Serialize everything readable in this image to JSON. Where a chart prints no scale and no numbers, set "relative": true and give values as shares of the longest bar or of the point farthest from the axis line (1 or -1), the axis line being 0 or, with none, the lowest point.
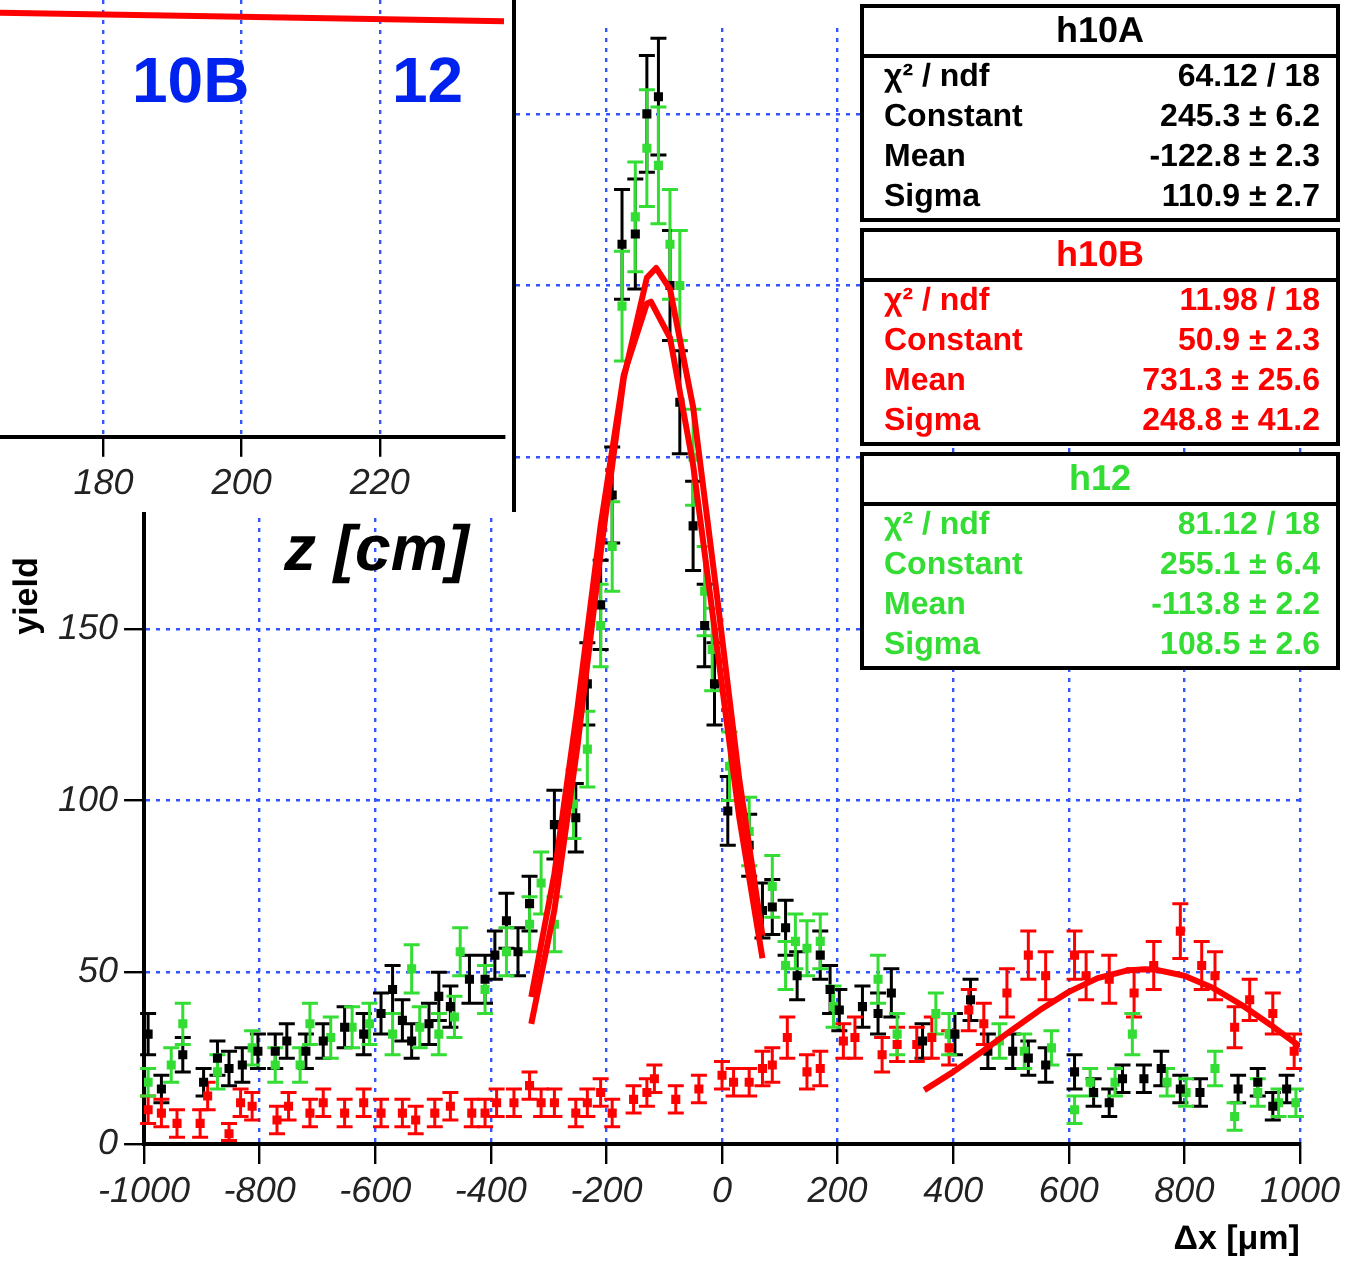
{
  "chart_data": [
    {
      "type": "scatter",
      "xlabel": "Δx [μm]",
      "ylabel": "yield",
      "xlim": [
        -1000,
        1000
      ],
      "xticks": [
        -1000,
        -800,
        -600,
        -400,
        -200,
        0,
        200,
        400,
        600,
        800,
        1000
      ],
      "ylim": [
        0,
        325
      ],
      "yticks": [
        0,
        50,
        100,
        150,
        {
          "value": 200,
          "label": null
        },
        {
          "value": 250,
          "label": null
        },
        {
          "value": 300,
          "label": null
        }
      ],
      "grid": true,
      "legend": false,
      "marker": "square",
      "annotations": [
        "χ² / ndf",
        "64.12 / 18",
        "Constant",
        "245.3 ± 6.2",
        "Mean",
        "-122.8 ± 2.3",
        "Sigma",
        "110.9 ± 2.7",
        "χ² / ndf",
        "11.98 / 18",
        "Constant",
        "50.9 ± 2.3",
        "Mean",
        "731.3 ± 25.6",
        "Sigma",
        "248.8 ± 41.2",
        "χ² / ndf",
        "81.12 / 18",
        "Constant",
        "255.1 ± 6.4",
        "Mean",
        "-113.8 ± 2.2",
        "Sigma",
        "108.5 ± 2.6"
      ],
      "series": [
        {
          "name": "h10A",
          "color": "#000000",
          "x": [
            -993,
            -970,
            -933,
            -897,
            -873,
            -853,
            -830,
            -803,
            -773,
            -753,
            -720,
            -690,
            -653,
            -620,
            -590,
            -570,
            -553,
            -537,
            -507,
            -490,
            -470,
            -437,
            -410,
            -393,
            -373,
            -353,
            -333,
            -290,
            -253,
            -233,
            -210,
            -190,
            -173,
            -150,
            -130,
            -110,
            -90,
            -73,
            -50,
            -30,
            -13,
            10,
            47,
            70,
            87,
            110,
            130,
            170,
            187,
            203,
            243,
            270,
            293,
            347,
            403,
            430,
            460,
            503,
            530,
            560,
            610,
            643,
            670,
            693,
            730,
            760,
            793,
            827,
            893,
            927,
            953,
            977
          ],
          "values": [
            32,
            16,
            26,
            18,
            25,
            22,
            23,
            27,
            27,
            30,
            27,
            30,
            34,
            32,
            38,
            45,
            36,
            30,
            35,
            43,
            40,
            48,
            48,
            55,
            65,
            56,
            70,
            93,
            95,
            134,
            157,
            189,
            262,
            265,
            300,
            305,
            250,
            216,
            180,
            151,
            134,
            97,
            87,
            68,
            69,
            63,
            49,
            55,
            45,
            39,
            40,
            38,
            44,
            30,
            32,
            42,
            27,
            27,
            25,
            23,
            21,
            15,
            12,
            19,
            19,
            22,
            16,
            15,
            16,
            18,
            11,
            16
          ],
          "errors": [
            6,
            4,
            5,
            4,
            5,
            5,
            5,
            5,
            5,
            5,
            5,
            5,
            6,
            6,
            6,
            7,
            6,
            5,
            6,
            7,
            6,
            7,
            7,
            7,
            8,
            7,
            8,
            10,
            10,
            12,
            13,
            14,
            16,
            16,
            17,
            17,
            16,
            15,
            13,
            12,
            12,
            10,
            9,
            8,
            8,
            8,
            7,
            7,
            7,
            6,
            6,
            6,
            7,
            5,
            6,
            6,
            5,
            5,
            5,
            5,
            5,
            4,
            4,
            4,
            4,
            5,
            4,
            4,
            4,
            4,
            4,
            4
          ]
        },
        {
          "name": "h10B",
          "color": "#ff0000",
          "x": [
            -993,
            -970,
            -943,
            -903,
            -890,
            -853,
            -833,
            -813,
            -770,
            -750,
            -713,
            -690,
            -653,
            -620,
            -590,
            -553,
            -530,
            -497,
            -470,
            -433,
            -410,
            -390,
            -360,
            -333,
            -313,
            -290,
            -253,
            -233,
            -210,
            -190,
            -153,
            -130,
            -117,
            -80,
            -40,
            0,
            20,
            47,
            70,
            87,
            113,
            147,
            170,
            210,
            230,
            277,
            303,
            337,
            363,
            393,
            427,
            453,
            493,
            530,
            560,
            610,
            630,
            670,
            713,
            747,
            793,
            830,
            853,
            887,
            913,
            953,
            990
          ],
          "values": [
            10,
            9,
            6,
            6,
            14,
            3,
            12,
            11,
            7,
            11,
            9,
            12,
            9,
            12,
            9,
            9,
            7,
            9,
            11,
            9,
            9,
            12,
            12,
            17,
            12,
            12,
            9,
            12,
            15,
            9,
            13,
            15,
            19,
            13,
            16,
            20,
            18,
            18,
            22,
            23,
            31,
            21,
            22,
            30,
            31,
            26,
            29,
            29,
            31,
            28,
            39,
            35,
            44,
            55,
            49,
            55,
            49,
            48,
            44,
            52,
            62,
            52,
            49,
            34,
            42,
            38,
            27
          ],
          "errors": [
            4,
            4,
            4,
            4,
            4,
            [
              2,
              3
            ],
            4,
            4,
            4,
            4,
            4,
            4,
            4,
            4,
            4,
            4,
            4,
            4,
            4,
            4,
            4,
            4,
            4,
            4,
            4,
            4,
            4,
            4,
            4,
            4,
            4,
            4,
            4,
            4,
            4,
            4,
            4,
            4,
            5,
            5,
            6,
            5,
            5,
            5,
            6,
            5,
            5,
            5,
            6,
            5,
            6,
            6,
            7,
            7,
            7,
            7,
            7,
            7,
            7,
            7,
            8,
            7,
            7,
            6,
            6,
            6,
            5
          ]
        },
        {
          "name": "h12",
          "color": "#33dd33",
          "x": [
            -993,
            -953,
            -933,
            -873,
            -813,
            -773,
            -730,
            -713,
            -677,
            -640,
            -610,
            -570,
            -537,
            -523,
            -490,
            -463,
            -453,
            -410,
            -373,
            -333,
            -313,
            -290,
            -257,
            -233,
            -210,
            -190,
            -173,
            -150,
            -130,
            -110,
            -90,
            -73,
            -50,
            -30,
            -17,
            13,
            47,
            87,
            110,
            127,
            147,
            170,
            193,
            270,
            303,
            370,
            393,
            480,
            523,
            570,
            610,
            637,
            680,
            710,
            770,
            803,
            853,
            887,
            927,
            963,
            993
          ],
          "values": [
            18,
            23,
            35,
            21,
            28,
            23,
            23,
            35,
            31,
            34,
            35,
            32,
            51,
            34,
            32,
            37,
            56,
            45,
            56,
            64,
            76,
            64,
            99,
            115,
            151,
            174,
            244,
            270,
            290,
            285,
            262,
            250,
            200,
            161,
            144,
            110,
            91,
            75,
            52,
            59,
            57,
            59,
            40,
            48,
            32,
            38,
            32,
            30,
            27,
            28,
            10,
            18,
            18,
            32,
            18,
            15,
            22,
            8,
            15,
            12,
            12
          ],
          "errors": [
            4,
            5,
            6,
            5,
            5,
            5,
            5,
            6,
            6,
            6,
            6,
            6,
            7,
            6,
            6,
            6,
            7,
            7,
            7,
            8,
            9,
            8,
            10,
            11,
            12,
            13,
            16,
            16,
            17,
            17,
            16,
            16,
            14,
            13,
            12,
            10,
            10,
            9,
            7,
            8,
            8,
            8,
            6,
            7,
            6,
            6,
            6,
            5,
            5,
            5,
            4,
            4,
            4,
            6,
            4,
            4,
            5,
            4,
            4,
            4,
            4
          ]
        },
        {
          "type": "line",
          "color": "#ff0000",
          "marker": "none",
          "x": [
            -330,
            -290,
            -250,
            -210,
            -170,
            -130,
            -123,
            -90,
            -50,
            -10,
            30,
            70
          ],
          "values": [
            42.8,
            78.7,
            127.1,
            180.1,
            224.0,
            244.8,
            245.3,
            234.8,
            197.8,
            146.3,
            94.9,
            54.1
          ]
        },
        {
          "type": "line",
          "color": "#ff0000",
          "marker": "none",
          "x": [
            -330,
            -290,
            -250,
            -210,
            -170,
            -130,
            -114,
            -90,
            -50,
            -10,
            30,
            70
          ],
          "values": [
            35.0,
            68.2,
            116.0,
            172.2,
            223.0,
            252.3,
            255.1,
            249.0,
            214.6,
            161.4,
            106.0,
            60.7
          ]
        },
        {
          "type": "line",
          "color": "#ff0000",
          "marker": "none",
          "x": [
            350,
            400,
            450,
            500,
            550,
            600,
            650,
            700,
            731,
            750,
            800,
            850,
            900,
            950,
            1000
          ],
          "values": [
            15.7,
            21.0,
            26.9,
            33.0,
            39.0,
            44.3,
            48.3,
            50.5,
            50.9,
            50.8,
            49.0,
            45.4,
            40.4,
            34.6,
            28.4
          ]
        }
      ]
    },
    {
      "type": "line",
      "relative": true,
      "xlabel": "z [cm]",
      "x": [
        165,
        238
      ],
      "xlim": [
        165,
        238
      ],
      "xticks": [
        180,
        200,
        220
      ],
      "tick_labels": "x",
      "grid": "x",
      "legend": false,
      "marker": "none",
      "annotations": [
        "10B",
        "12"
      ],
      "series": [
        {
          "color": "#ff0000",
          "values": [
            1,
            0.98
          ]
        }
      ]
    }
  ]
}
